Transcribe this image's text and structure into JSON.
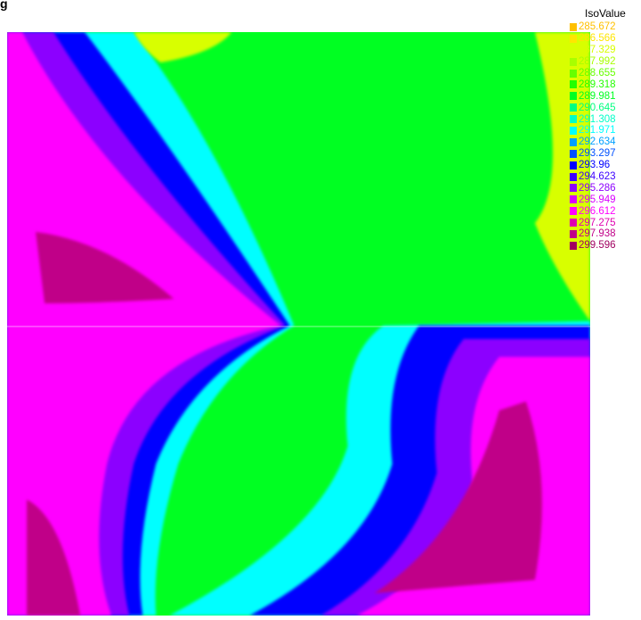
{
  "figure": {
    "panel_label": "g"
  },
  "chart_data": {
    "type": "heatmap",
    "legend": {
      "title": "IsoValue",
      "placement": "top-right",
      "entries": [
        {
          "label": "285.672",
          "color": "#ffc000"
        },
        {
          "label": "286.566",
          "color": "#ffe600"
        },
        {
          "label": "287.329",
          "color": "#d8ff00"
        },
        {
          "label": "287.992",
          "color": "#a8ff00"
        },
        {
          "label": "288.655",
          "color": "#66ff00"
        },
        {
          "label": "289.318",
          "color": "#22ff00"
        },
        {
          "label": "289.981",
          "color": "#00ff22"
        },
        {
          "label": "290.645",
          "color": "#00ff80"
        },
        {
          "label": "291.308",
          "color": "#00ffc8"
        },
        {
          "label": "291.971",
          "color": "#00ffff"
        },
        {
          "label": "292.634",
          "color": "#00a0ff"
        },
        {
          "label": "293.297",
          "color": "#0050ff"
        },
        {
          "label": "293.96",
          "color": "#0000ff"
        },
        {
          "label": "294.623",
          "color": "#3c00ff"
        },
        {
          "label": "295.286",
          "color": "#8c00ff"
        },
        {
          "label": "295.949",
          "color": "#d800ff"
        },
        {
          "label": "296.612",
          "color": "#ff00ff"
        },
        {
          "label": "297.275",
          "color": "#e000b0"
        },
        {
          "label": "297.938",
          "color": "#c00088"
        },
        {
          "label": "299.596",
          "color": "#a00060"
        }
      ]
    },
    "fill_colors": {
      "low": "#d8ff00",
      "green": "#00ff22",
      "cyan": "#00ffff",
      "blue": "#0000ff",
      "violet": "#8c00ff",
      "magenta": "#ff00ff",
      "high": "#c00088"
    }
  }
}
